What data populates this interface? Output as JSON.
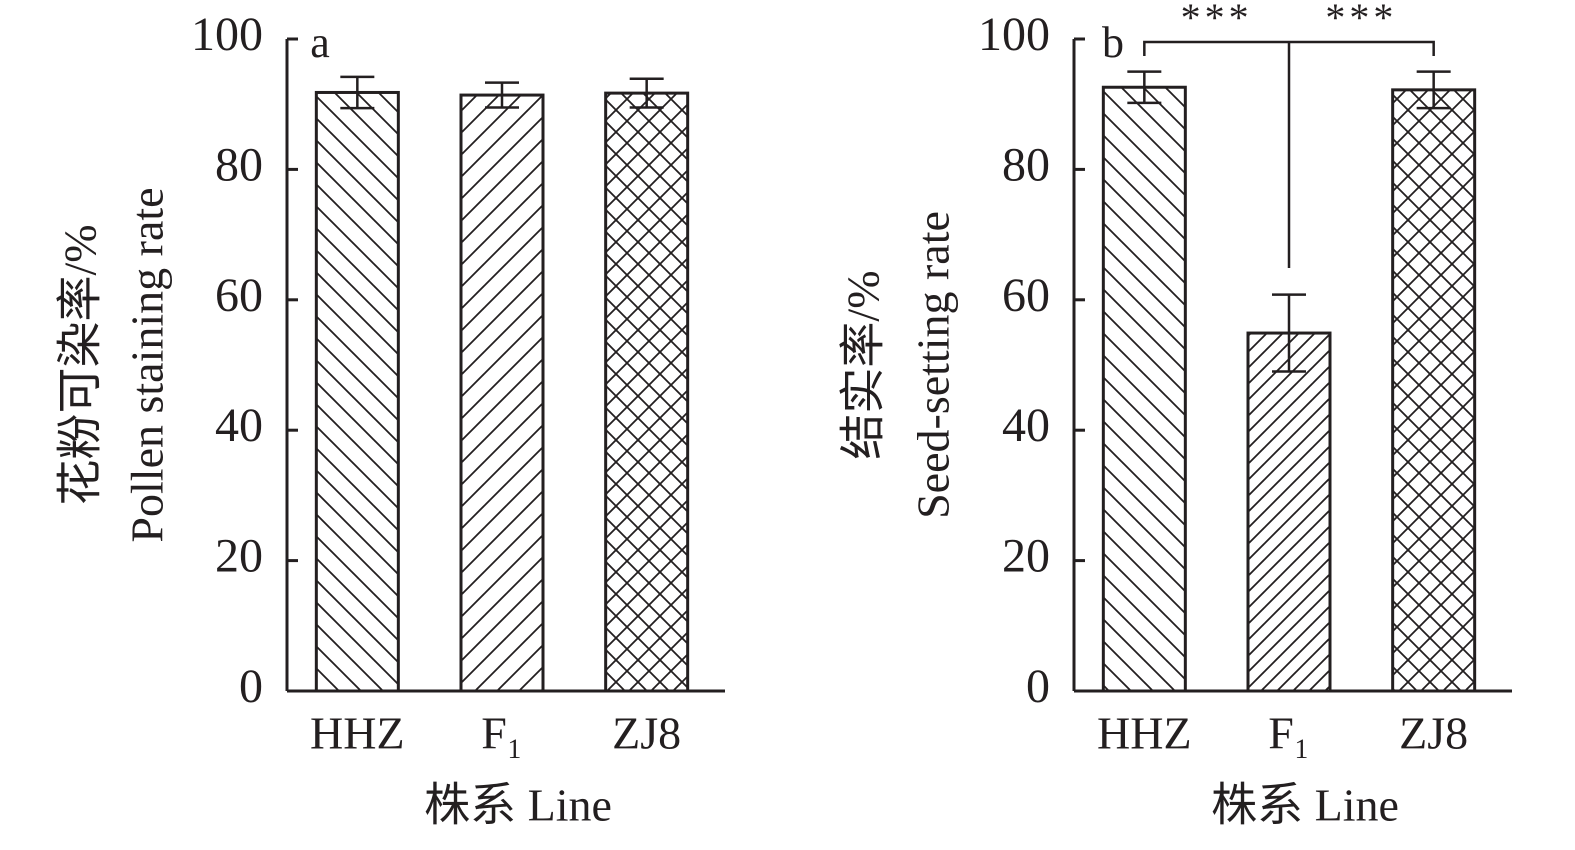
{
  "chart_data": [
    {
      "type": "bar",
      "panel_label": "a",
      "ylabel": [
        "花粉可染率/%",
        "Pollen staining rate"
      ],
      "xlabel": "株系 Line",
      "categories": [
        "HHZ",
        "F₁",
        "ZJ8"
      ],
      "values": [
        91.8,
        91.4,
        91.7
      ],
      "errors": [
        2.4,
        1.9,
        2.2
      ],
      "hatches": [
        "\\",
        "/",
        "x"
      ],
      "color": "#231f20",
      "ylim": [
        0,
        100
      ],
      "yticks": [
        0,
        20,
        40,
        60,
        80,
        100
      ]
    },
    {
      "type": "bar",
      "panel_label": "b",
      "ylabel": [
        "结实率/%",
        "Seed-setting rate"
      ],
      "xlabel": "株系 Line",
      "categories": [
        "HHZ",
        "F₁",
        "ZJ8"
      ],
      "values": [
        92.6,
        54.9,
        92.2
      ],
      "errors": [
        2.4,
        5.9,
        2.8
      ],
      "hatches": [
        "\\",
        "/",
        "x"
      ],
      "color": "#231f20",
      "ylim": [
        0,
        100
      ],
      "yticks": [
        0,
        20,
        40,
        60,
        80,
        100
      ],
      "annotations": [
        "***",
        "***"
      ]
    }
  ]
}
